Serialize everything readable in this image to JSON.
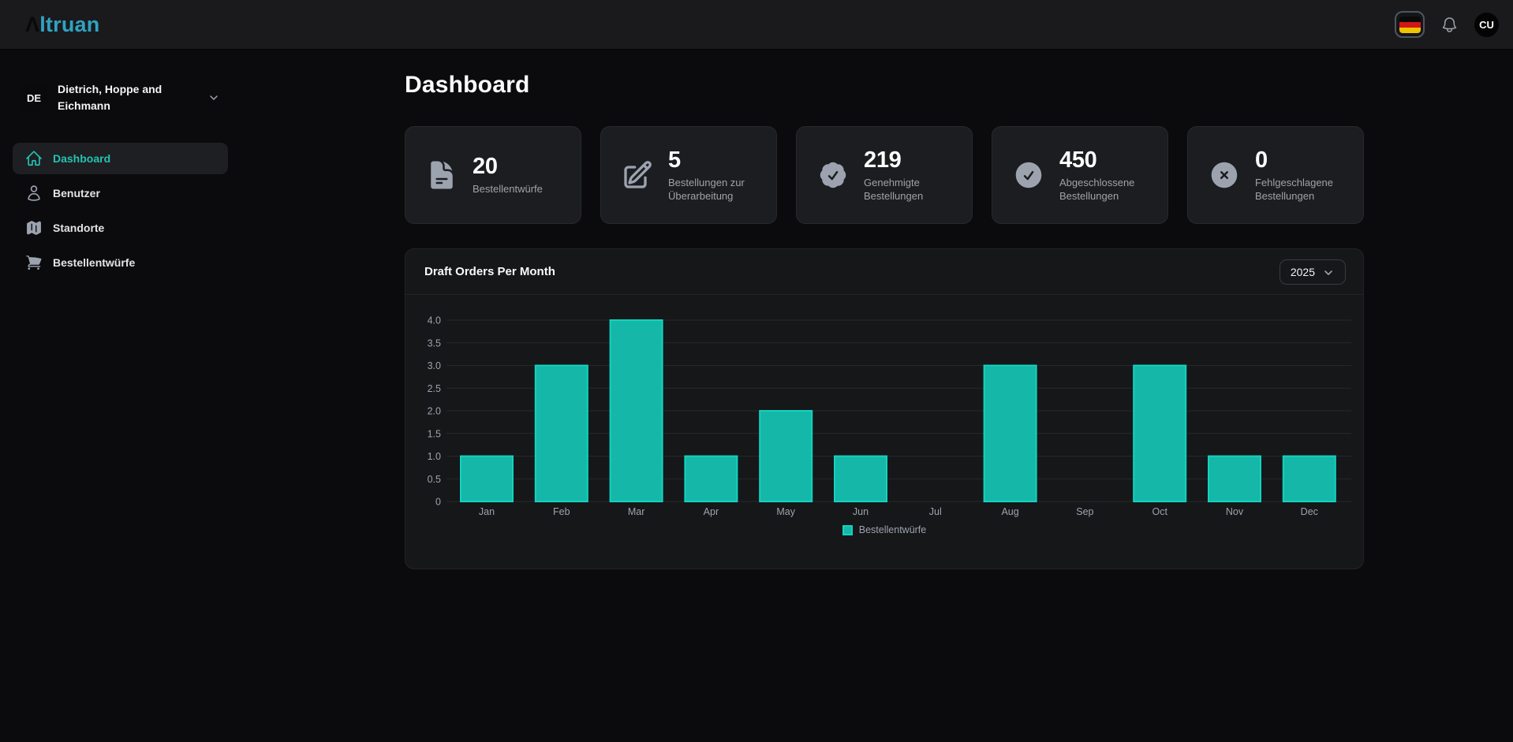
{
  "brand": {
    "logo_prefix": "Λ",
    "logo_rest": "ltruan",
    "accent_color": "#2fa3c0"
  },
  "topbar": {
    "language": "german-flag",
    "avatar_initials": "CU"
  },
  "sidebar": {
    "company": {
      "initials": "DE",
      "name": "Dietrich, Hoppe and Eichmann"
    },
    "items": [
      {
        "label": "Dashboard",
        "icon": "home-icon",
        "active": true
      },
      {
        "label": "Benutzer",
        "icon": "user-icon",
        "active": false
      },
      {
        "label": "Standorte",
        "icon": "map-icon",
        "active": false
      },
      {
        "label": "Bestellentwürfe",
        "icon": "cart-icon",
        "active": false
      }
    ]
  },
  "main": {
    "title": "Dashboard",
    "stats": [
      {
        "value": "20",
        "label": "Bestellentwürfe",
        "icon": "file-text-icon"
      },
      {
        "value": "5",
        "label": "Bestellungen zur Überarbeitung",
        "icon": "edit-icon"
      },
      {
        "value": "219",
        "label": "Genehmigte Bestellungen",
        "icon": "badge-check-icon"
      },
      {
        "value": "450",
        "label": "Abgeschlossene Bestellungen",
        "icon": "check-circle-icon"
      },
      {
        "value": "0",
        "label": "Fehlgeschlagene Bestellungen",
        "icon": "x-circle-icon"
      }
    ]
  },
  "chart_card": {
    "title": "Draft Orders Per Month",
    "year_selected": "2025"
  },
  "chart_data": {
    "type": "bar",
    "title": "Draft Orders Per Month",
    "categories": [
      "Jan",
      "Feb",
      "Mar",
      "Apr",
      "May",
      "Jun",
      "Jul",
      "Aug",
      "Sep",
      "Oct",
      "Nov",
      "Dec"
    ],
    "series": [
      {
        "name": "Bestellentwürfe",
        "values": [
          1,
          3,
          4,
          1,
          2,
          1,
          0,
          3,
          0,
          3,
          1,
          1
        ],
        "color": "#15b7a8",
        "border_color": "#12d3c0"
      }
    ],
    "xlabel": "",
    "ylabel": "",
    "ylim": [
      0,
      4
    ],
    "yticks": [
      "0",
      "0.5",
      "1.0",
      "1.5",
      "2.0",
      "2.5",
      "3.0",
      "3.5",
      "4.0"
    ],
    "grid": "horizontal",
    "grid_color": "#27282b",
    "tick_color": "#9ca3af",
    "legend_position": "bottom"
  }
}
